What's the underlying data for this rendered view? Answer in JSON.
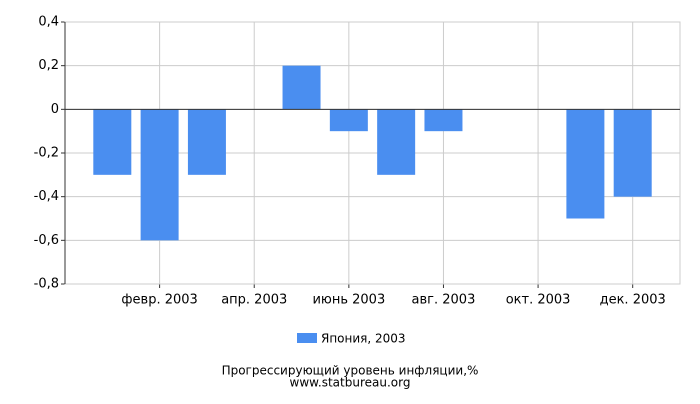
{
  "chart_data": {
    "type": "bar",
    "categories": [
      null,
      "февр. 2003",
      null,
      "апр. 2003",
      null,
      "июнь 2003",
      null,
      "авг. 2003",
      null,
      "окт. 2003",
      null,
      "дек. 2003"
    ],
    "series": [
      {
        "name": "Япония, 2003",
        "color": "#4a8ef0",
        "values": [
          -0.3,
          -0.6,
          -0.3,
          0,
          0.2,
          -0.1,
          -0.3,
          -0.1,
          0,
          0,
          -0.5,
          -0.4
        ]
      }
    ],
    "ylim": [
      -0.8,
      0.4
    ],
    "yticks": [
      {
        "value": 0.4,
        "label": "0,4"
      },
      {
        "value": 0.2,
        "label": "0,2"
      },
      0,
      {
        "value": -0.2,
        "label": "-0,2"
      },
      {
        "value": -0.4,
        "label": "-0,4"
      },
      {
        "value": -0.6,
        "label": "-0,6"
      },
      {
        "value": -0.8,
        "label": "-0,8"
      }
    ],
    "grid": true,
    "title": "Прогрессирующий уровень инфляции,%",
    "source": "www.statbureau.org"
  }
}
